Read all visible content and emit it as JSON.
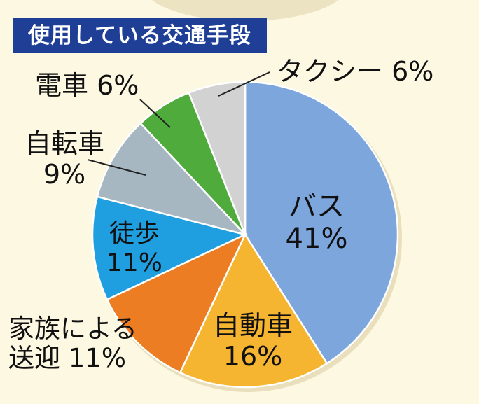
{
  "title": "使用している交通手段",
  "chart_data": {
    "type": "pie",
    "title": "使用している交通手段",
    "unit": "%",
    "slices": [
      {
        "label_lines": [
          "バス"
        ],
        "pct_text": "41%",
        "value": 41,
        "color": "#7ca6dc",
        "label_inside": true
      },
      {
        "label_lines": [
          "自動車"
        ],
        "pct_text": "16%",
        "value": 16,
        "color": "#f6b531",
        "label_inside": true
      },
      {
        "label_lines": [
          "家族による",
          "送迎"
        ],
        "pct_text": "11%",
        "value": 11,
        "color": "#ed7d22",
        "label_inside": false
      },
      {
        "label_lines": [
          "徒歩"
        ],
        "pct_text": "11%",
        "value": 11,
        "color": "#1f9fe0",
        "label_inside": true
      },
      {
        "label_lines": [
          "自転車"
        ],
        "pct_text": "9%",
        "value": 9,
        "color": "#a6b7c1",
        "label_inside": false
      },
      {
        "label_lines": [
          "電車"
        ],
        "pct_text": "6%",
        "value": 6,
        "color": "#4eab3c",
        "label_inside": false
      },
      {
        "label_lines": [
          "タクシー"
        ],
        "pct_text": "6%",
        "value": 6,
        "color": "#d2d2d2",
        "label_inside": false
      }
    ]
  }
}
